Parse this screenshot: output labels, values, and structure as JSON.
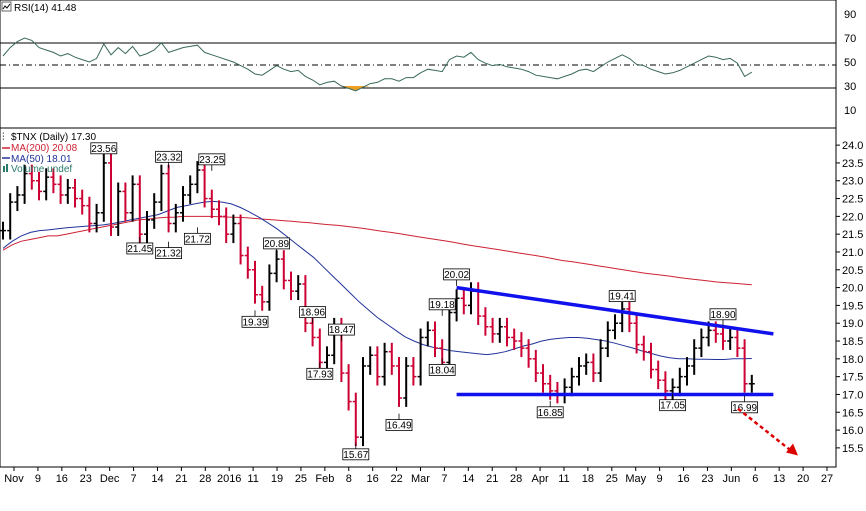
{
  "rsi_panel": {
    "label": "RSI(14) 41.48",
    "ticks": [
      "90",
      "70",
      "50",
      "30",
      "10"
    ],
    "levels": [
      90,
      70,
      50,
      30,
      10
    ],
    "overbought": 70,
    "oversold": 30
  },
  "price_panel": {
    "legend": {
      "title": "$TNX (Daily) 17.30",
      "ma200": "MA(200) 20.08",
      "ma50": "MA(50) 18.01",
      "volume": "Volume undef"
    },
    "y_ticks": [
      "24.0",
      "23.5",
      "23.0",
      "22.5",
      "22.0",
      "21.5",
      "21.0",
      "20.5",
      "20.0",
      "19.5",
      "19.0",
      "18.5",
      "18.0",
      "17.5",
      "17.0",
      "16.5",
      "16.0",
      "15.5"
    ]
  },
  "x_axis": {
    "labels": [
      "Nov",
      "9",
      "16",
      "23",
      "Dec",
      "7",
      "14",
      "21",
      "28",
      "2016",
      "11",
      "19",
      "25",
      "Feb",
      "8",
      "16",
      "22",
      "Mar",
      "7",
      "14",
      "21",
      "28",
      "Apr",
      "11",
      "18",
      "25",
      "May",
      "9",
      "16",
      "23",
      "Jun",
      "6",
      "13",
      "20",
      "27"
    ]
  },
  "colors": {
    "up_bar": "#000000",
    "down_bar": "#cc0033",
    "ma200": "#cc2233",
    "ma50": "#223399",
    "trendline": "#1111ee",
    "forecast_arrow": "#dd0000",
    "rsi_line": "#3a6a5a",
    "rsi_fill": "#f0a020",
    "ma200_legend": "#cc2233",
    "ma50_legend": "#223399",
    "volume_legend": "#2a7a6a"
  },
  "chart_data": {
    "type": "line",
    "title": "$TNX (Daily) 17.30",
    "ylim": [
      15.3,
      24.2
    ],
    "series": [
      {
        "name": "$TNX (Daily)",
        "values": [
          21.6,
          22.4,
          22.6,
          23.2,
          23.0,
          22.7,
          23.1,
          22.9,
          22.6,
          22.8,
          22.5,
          22.3,
          21.8,
          22.1,
          23.5,
          21.7,
          22.7,
          22.1,
          22.9,
          21.5,
          21.9,
          22.4,
          23.2,
          21.8,
          22.1,
          22.6,
          22.9,
          23.3,
          22.5,
          22.2,
          22.0,
          21.5,
          21.8,
          20.9,
          20.5,
          19.8,
          19.6,
          20.4,
          20.8,
          20.2,
          19.9,
          20.1,
          19.0,
          18.6,
          17.9,
          18.1,
          18.9,
          17.6,
          16.8,
          15.8,
          17.8,
          18.1,
          17.5,
          18.2,
          17.8,
          16.9,
          17.8,
          17.5,
          18.6,
          18.8,
          18.3,
          17.9,
          19.3,
          19.7,
          19.5,
          19.9,
          19.2,
          18.9,
          18.7,
          18.9,
          18.6,
          18.5,
          18.3,
          18.0,
          17.6,
          17.3,
          17.1,
          17.0,
          17.2,
          17.5,
          17.8,
          17.9,
          17.6,
          18.3,
          18.8,
          19.0,
          19.4,
          19.0,
          18.4,
          18.2,
          17.7,
          17.4,
          17.1,
          17.2,
          17.5,
          17.8,
          18.3,
          18.6,
          18.8,
          18.7,
          18.5,
          18.6,
          18.3,
          17.3,
          17.3
        ]
      },
      {
        "name": "MA(200)",
        "values": [
          21.05,
          21.2,
          21.3,
          21.35,
          21.4,
          21.45,
          21.45,
          21.5,
          21.55,
          21.6,
          21.65,
          21.7,
          21.75,
          21.8,
          21.85,
          21.9,
          21.92,
          21.95,
          21.97,
          21.98,
          22.0,
          22.0,
          22.0,
          22.0,
          21.99,
          21.98,
          21.97,
          21.96,
          21.94,
          21.92,
          21.9,
          21.88,
          21.86,
          21.84,
          21.82,
          21.79,
          21.77,
          21.75,
          21.72,
          21.69,
          21.66,
          21.62,
          21.58,
          21.55,
          21.51,
          21.47,
          21.43,
          21.39,
          21.35,
          21.31,
          21.27,
          21.22,
          21.18,
          21.14,
          21.1,
          21.06,
          21.02,
          20.98,
          20.94,
          20.9,
          20.86,
          20.81,
          20.76,
          20.73,
          20.69,
          20.65,
          20.61,
          20.57,
          20.53,
          20.49,
          20.45,
          20.41,
          20.38,
          20.35,
          20.32,
          20.28,
          20.25,
          20.22,
          20.19,
          20.16,
          20.14,
          20.12,
          20.1,
          20.08
        ],
        "start_index": 0
      },
      {
        "name": "MA(50)",
        "values": [
          21.1,
          21.3,
          21.45,
          21.55,
          21.6,
          21.62,
          21.65,
          21.68,
          21.7,
          21.72,
          21.74,
          21.76,
          21.8,
          21.85,
          21.9,
          21.95,
          22.0,
          22.05,
          22.15,
          22.25,
          22.3,
          22.35,
          22.4,
          22.42,
          22.4,
          22.35,
          22.25,
          22.12,
          21.98,
          21.82,
          21.65,
          21.45,
          21.25,
          21.05,
          20.85,
          20.6,
          20.35,
          20.1,
          19.85,
          19.6,
          19.38,
          19.16,
          18.98,
          18.8,
          18.62,
          18.5,
          18.4,
          18.33,
          18.28,
          18.23,
          18.2,
          18.17,
          18.14,
          18.12,
          18.15,
          18.2,
          18.28,
          18.36,
          18.42,
          18.5,
          18.55,
          18.58,
          18.6,
          18.6,
          18.58,
          18.54,
          18.5,
          18.44,
          18.37,
          18.3,
          18.22,
          18.15,
          18.08,
          18.03,
          18.0,
          18.0,
          17.99,
          17.99,
          17.98,
          17.98,
          18.0,
          18.0,
          18.01
        ],
        "start_index": 0
      }
    ],
    "annotations": [
      {
        "text": "23.56",
        "index": 14,
        "value": 23.56,
        "pos": "above"
      },
      {
        "text": "23.32",
        "index": 23,
        "value": 23.32,
        "pos": "above"
      },
      {
        "text": "23.25",
        "index": 29,
        "value": 23.25,
        "pos": "above"
      },
      {
        "text": "21.45",
        "index": 19,
        "value": 21.45,
        "pos": "below"
      },
      {
        "text": "21.32",
        "index": 23,
        "value": 21.32,
        "pos": "below"
      },
      {
        "text": "21.72",
        "index": 27,
        "value": 21.72,
        "pos": "below"
      },
      {
        "text": "20.89",
        "index": 38,
        "value": 20.89,
        "pos": "above"
      },
      {
        "text": "19.39",
        "index": 35,
        "value": 19.39,
        "pos": "below"
      },
      {
        "text": "18.96",
        "index": 43,
        "value": 18.96,
        "pos": "above"
      },
      {
        "text": "17.93",
        "index": 44,
        "value": 17.93,
        "pos": "below"
      },
      {
        "text": "18.47",
        "index": 47,
        "value": 18.47,
        "pos": "above"
      },
      {
        "text": "15.67",
        "index": 49,
        "value": 15.67,
        "pos": "below"
      },
      {
        "text": "16.49",
        "index": 55,
        "value": 16.49,
        "pos": "below"
      },
      {
        "text": "19.18",
        "index": 61,
        "value": 19.18,
        "pos": "above"
      },
      {
        "text": "18.04",
        "index": 61,
        "value": 18.04,
        "pos": "below"
      },
      {
        "text": "20.02",
        "index": 63,
        "value": 20.02,
        "pos": "above"
      },
      {
        "text": "16.85",
        "index": 76,
        "value": 16.85,
        "pos": "below"
      },
      {
        "text": "19.41",
        "index": 86,
        "value": 19.41,
        "pos": "above"
      },
      {
        "text": "17.05",
        "index": 93,
        "value": 17.05,
        "pos": "below"
      },
      {
        "text": "18.90",
        "index": 100,
        "value": 18.9,
        "pos": "above"
      },
      {
        "text": "16.99",
        "index": 103,
        "value": 16.99,
        "pos": "below"
      }
    ],
    "trendlines": [
      {
        "name": "resistance",
        "from": [
          63,
          20.0
        ],
        "to": [
          107,
          18.7
        ]
      },
      {
        "name": "support",
        "from": [
          63,
          17.0
        ],
        "to": [
          107,
          17.0
        ]
      }
    ],
    "rsi": {
      "name": "RSI(14)",
      "values": [
        55,
        62,
        67,
        70,
        68,
        62,
        60,
        58,
        55,
        57,
        54,
        52,
        50,
        53,
        65,
        56,
        62,
        57,
        63,
        55,
        57,
        60,
        66,
        58,
        60,
        62,
        63,
        64,
        58,
        56,
        54,
        52,
        50,
        47,
        44,
        40,
        39,
        43,
        47,
        44,
        42,
        43,
        38,
        35,
        31,
        33,
        34,
        30,
        28,
        26,
        29,
        32,
        33,
        36,
        36,
        34,
        37,
        37,
        41,
        44,
        43,
        42,
        52,
        55,
        54,
        58,
        52,
        49,
        47,
        48,
        46,
        45,
        44,
        42,
        39,
        38,
        37,
        36,
        38,
        40,
        43,
        44,
        42,
        46,
        50,
        53,
        56,
        53,
        48,
        47,
        44,
        42,
        40,
        41,
        43,
        46,
        49,
        52,
        55,
        54,
        52,
        53,
        49,
        38,
        41.48
      ]
    }
  }
}
